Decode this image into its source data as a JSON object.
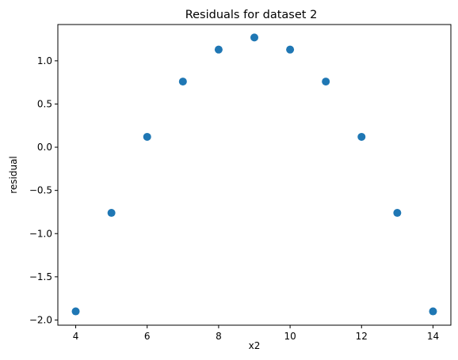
{
  "chart_data": {
    "type": "scatter",
    "title": "Residuals for dataset 2",
    "xlabel": "x2",
    "ylabel": "residual",
    "xlim": [
      3.5,
      14.5
    ],
    "ylim": [
      -2.06,
      1.42
    ],
    "x_ticks": [
      4,
      6,
      8,
      10,
      12,
      14
    ],
    "x_tick_labels": [
      "4",
      "6",
      "8",
      "10",
      "12",
      "14"
    ],
    "y_ticks": [
      -2.0,
      -1.5,
      -1.0,
      -0.5,
      0.0,
      0.5,
      1.0
    ],
    "y_tick_labels": [
      "−2.0",
      "−1.5",
      "−1.0",
      "−0.5",
      "0.0",
      "0.5",
      "1.0"
    ],
    "grid": false,
    "legend": "none",
    "series": [
      {
        "color": "#1f77b4",
        "x": [
          4,
          5,
          6,
          7,
          8,
          9,
          10,
          11,
          12,
          13,
          14
        ],
        "y": [
          -1.9,
          -0.76,
          0.12,
          0.76,
          1.13,
          1.27,
          1.13,
          0.76,
          0.12,
          -0.76,
          -1.9
        ]
      }
    ]
  }
}
